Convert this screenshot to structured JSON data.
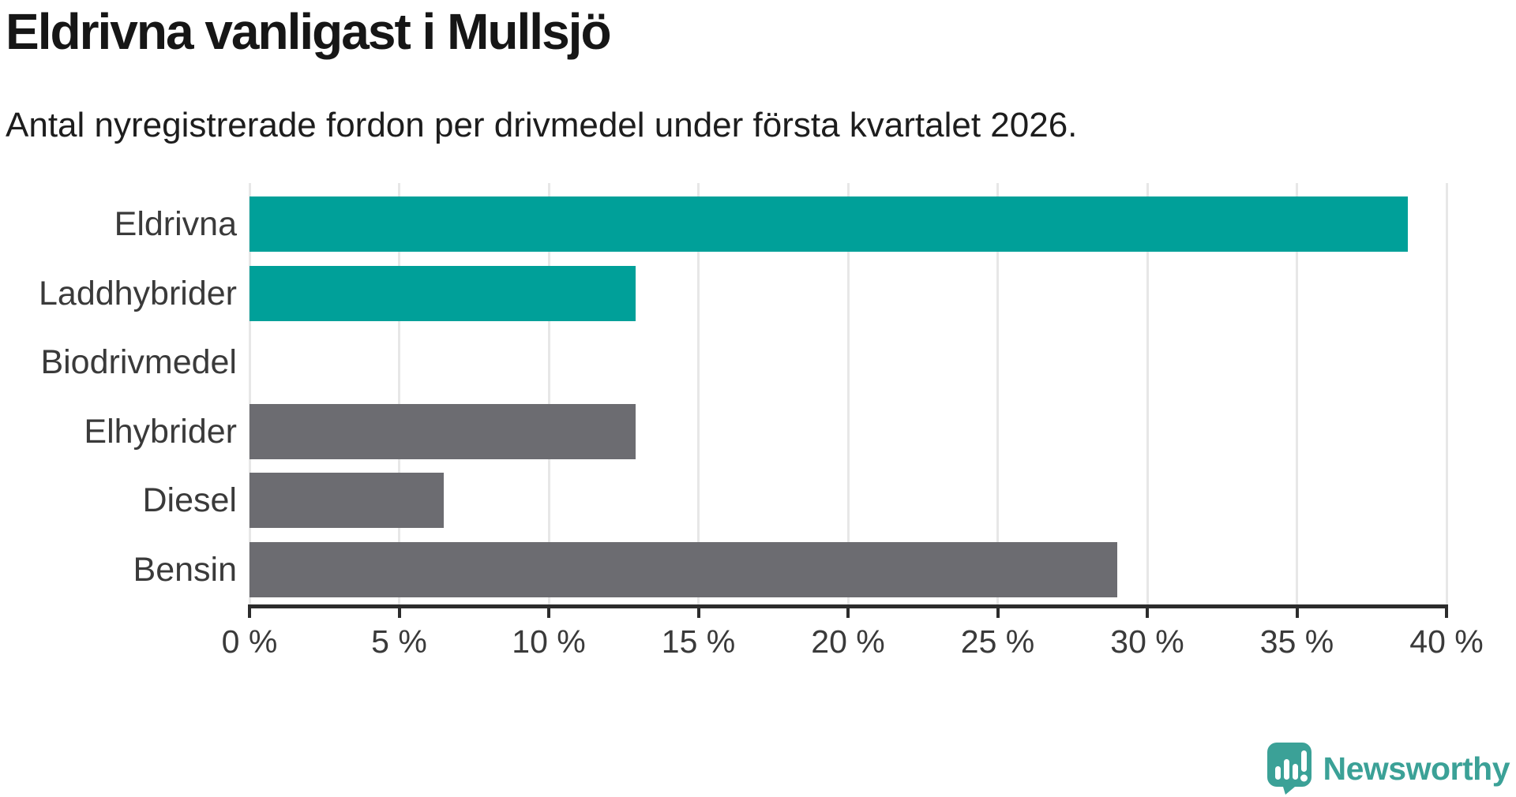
{
  "chart_data": {
    "type": "bar",
    "orientation": "horizontal",
    "title": "Eldrivna vanligast i Mullsjö",
    "subtitle": "Antal nyregistrerade fordon per drivmedel under första kvartalet 2026.",
    "categories": [
      "Eldrivna",
      "Laddhybrider",
      "Biodrivmedel",
      "Elhybrider",
      "Diesel",
      "Bensin"
    ],
    "values": [
      38.7,
      12.9,
      0,
      12.9,
      6.5,
      29.0
    ],
    "unit": "percent",
    "xlim": [
      0,
      40
    ],
    "x_tick_step": 5,
    "x_tick_labels": [
      "0 %",
      "5 %",
      "10 %",
      "15 %",
      "20 %",
      "25 %",
      "30 %",
      "35 %",
      "40 %"
    ],
    "grid": "vertical-gridlines",
    "legend": "none",
    "bar_colors": [
      "#00a099",
      "#00a099",
      "#00a099",
      "#6c6c71",
      "#6c6c71",
      "#6c6c71"
    ]
  },
  "branding": {
    "logo_text": "Newsworthy",
    "logo_icon": "newsworthy-speech-bubble-bar-chart-icon",
    "logo_color": "#3ba197"
  },
  "colors": {
    "background": "#ffffff",
    "accent_teal": "#00a099",
    "neutral_gray": "#6c6c71",
    "axis": "#2c2c2c",
    "gridline": "#e7e7e7",
    "title_text": "#161616",
    "label_text": "#3a3a3a"
  }
}
